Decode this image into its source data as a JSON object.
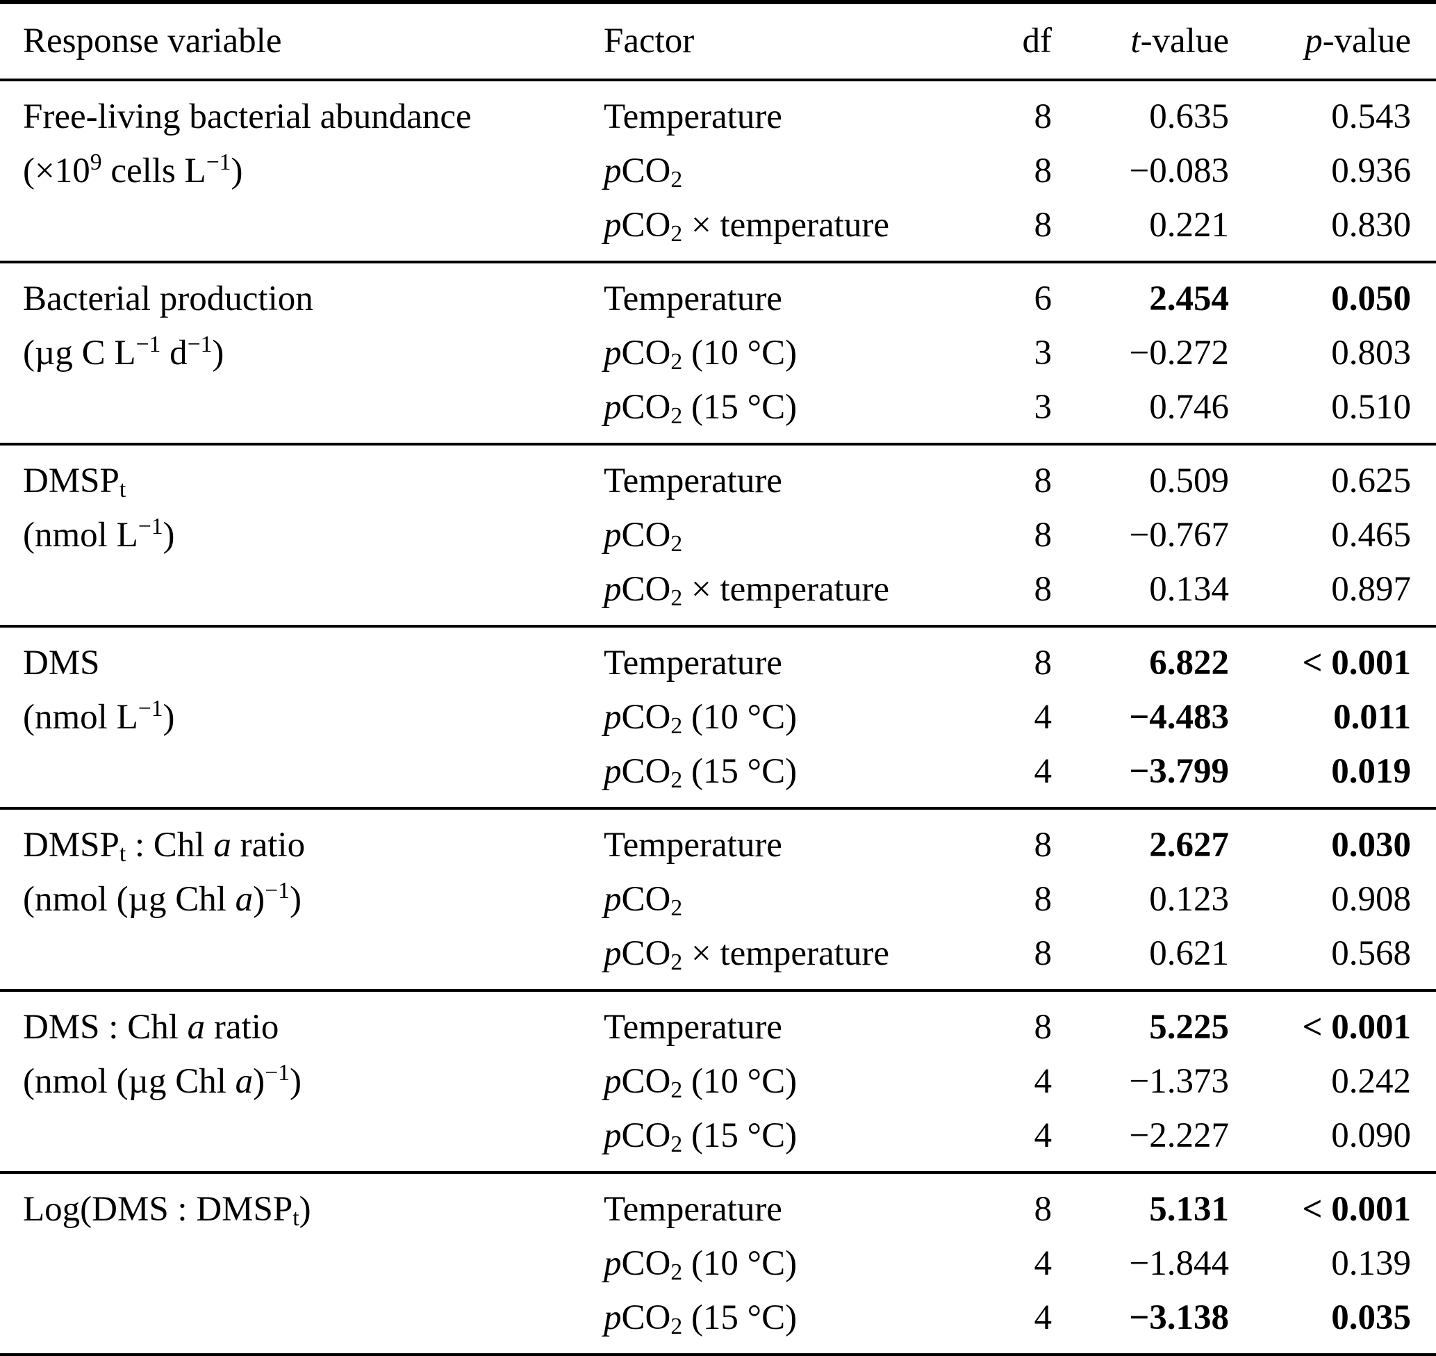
{
  "header": {
    "response_variable": "Response variable",
    "factor": "Factor",
    "df": "df",
    "t_value": "<i>t</i>-value",
    "p_value": "<i>p</i>-value"
  },
  "groups": [
    {
      "variable": "Free-living bacterial abundance",
      "unit": "(×10<sup>9</sup> cells L<sup>−1</sup>)",
      "rows": [
        {
          "factor": "Temperature",
          "df": "8",
          "t": "0.635",
          "p": "0.543",
          "bold": false
        },
        {
          "factor": "<i>p</i>CO<sub>2</sub>",
          "df": "8",
          "t": "−0.083",
          "p": "0.936",
          "bold": false
        },
        {
          "factor": "<i>p</i>CO<sub>2</sub> × temperature",
          "df": "8",
          "t": "0.221",
          "p": "0.830",
          "bold": false
        }
      ]
    },
    {
      "variable": "Bacterial production",
      "unit": "(µg C L<sup>−1</sup> d<sup>−1</sup>)",
      "rows": [
        {
          "factor": "Temperature",
          "df": "6",
          "t": "2.454",
          "p": "0.050",
          "bold": true
        },
        {
          "factor": "<i>p</i>CO<sub>2</sub> (10 °C)",
          "df": "3",
          "t": "−0.272",
          "p": "0.803",
          "bold": false
        },
        {
          "factor": "<i>p</i>CO<sub>2</sub> (15 °C)",
          "df": "3",
          "t": "0.746",
          "p": "0.510",
          "bold": false
        }
      ]
    },
    {
      "variable": "DMSP<sub>t</sub>",
      "unit": "(nmol L<sup>−1</sup>)",
      "rows": [
        {
          "factor": "Temperature",
          "df": "8",
          "t": "0.509",
          "p": "0.625",
          "bold": false
        },
        {
          "factor": "<i>p</i>CO<sub>2</sub>",
          "df": "8",
          "t": "−0.767",
          "p": "0.465",
          "bold": false
        },
        {
          "factor": "<i>p</i>CO<sub>2</sub> × temperature",
          "df": "8",
          "t": "0.134",
          "p": "0.897",
          "bold": false
        }
      ]
    },
    {
      "variable": "DMS",
      "unit": "(nmol L<sup>−1</sup>)",
      "rows": [
        {
          "factor": "Temperature",
          "df": "8",
          "t": "6.822",
          "p": "< 0.001",
          "bold": true
        },
        {
          "factor": "<i>p</i>CO<sub>2</sub> (10 °C)",
          "df": "4",
          "t": "−4.483",
          "p": "0.011",
          "bold": true
        },
        {
          "factor": "<i>p</i>CO<sub>2</sub> (15 °C)",
          "df": "4",
          "t": "−3.799",
          "p": "0.019",
          "bold": true
        }
      ]
    },
    {
      "variable": "DMSP<sub>t</sub> : Chl <i>a</i> ratio",
      "unit": "(nmol (µg Chl <i>a</i>)<sup>−1</sup>)",
      "rows": [
        {
          "factor": "Temperature",
          "df": "8",
          "t": "2.627",
          "p": "0.030",
          "bold": true
        },
        {
          "factor": "<i>p</i>CO<sub>2</sub>",
          "df": "8",
          "t": "0.123",
          "p": "0.908",
          "bold": false
        },
        {
          "factor": "<i>p</i>CO<sub>2</sub> × temperature",
          "df": "8",
          "t": "0.621",
          "p": "0.568",
          "bold": false
        }
      ]
    },
    {
      "variable": "DMS : Chl <i>a</i> ratio",
      "unit": "(nmol (µg Chl <i>a</i>)<sup>−1</sup>)",
      "rows": [
        {
          "factor": "Temperature",
          "df": "8",
          "t": "5.225",
          "p": "< 0.001",
          "bold": true
        },
        {
          "factor": "<i>p</i>CO<sub>2</sub> (10 °C)",
          "df": "4",
          "t": "−1.373",
          "p": "0.242",
          "bold": false
        },
        {
          "factor": "<i>p</i>CO<sub>2</sub> (15 °C)",
          "df": "4",
          "t": "−2.227",
          "p": "0.090",
          "bold": false
        }
      ]
    },
    {
      "variable": "Log(DMS : DMSP<sub>t</sub>)",
      "unit": "",
      "rows": [
        {
          "factor": "Temperature",
          "df": "8",
          "t": "5.131",
          "p": "< 0.001",
          "bold": true
        },
        {
          "factor": "<i>p</i>CO<sub>2</sub> (10 °C)",
          "df": "4",
          "t": "−1.844",
          "p": "0.139",
          "bold": false
        },
        {
          "factor": "<i>p</i>CO<sub>2</sub> (15 °C)",
          "df": "4",
          "t": "−3.138",
          "p": "0.035",
          "bold": true
        }
      ]
    }
  ]
}
